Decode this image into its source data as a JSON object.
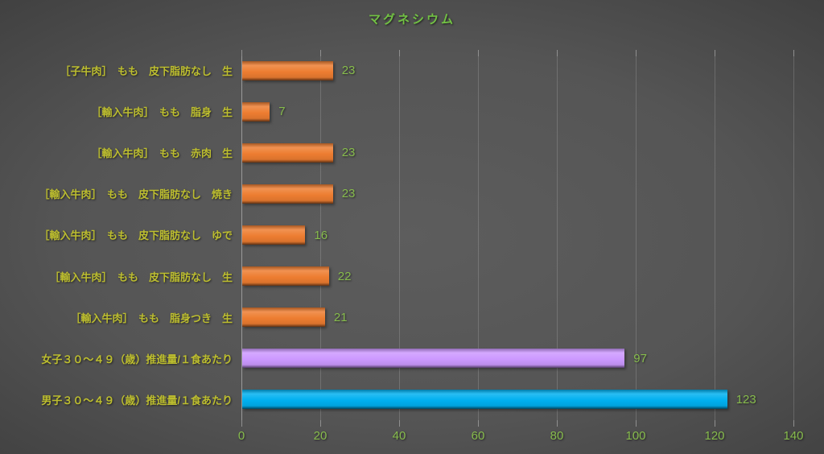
{
  "title": "マグネシウム",
  "colors": {
    "title": "#72C144",
    "category_label": "#BDBE2F",
    "value_label": "#87BC4D",
    "axis_tick_label": "#87BC4D",
    "axis_line": "#9a9a9a",
    "gridline": "rgba(255,255,255,0.16)",
    "tick_mark": "#8f8f8f",
    "background_center": "#5d5d5d",
    "background_edge": "#242424"
  },
  "chart_data": {
    "type": "bar",
    "orientation": "horizontal",
    "title": "マグネシウム",
    "categories": [
      "［子牛肉］　もも　皮下脂肪なし　生",
      "［輸入牛肉］　もも　脂身　生",
      "［輸入牛肉］　もも　赤肉　生",
      "［輸入牛肉］　もも　皮下脂肪なし　焼き",
      "［輸入牛肉］　もも　皮下脂肪なし　ゆで",
      "［輸入牛肉］　もも　皮下脂肪なし　生",
      "［輸入牛肉］　もも　脂身つき　生",
      "女子３０～４９（歳）推進量/１食あたり",
      "男子３０～４９（歳）推進量/１食あたり"
    ],
    "values": [
      23,
      7,
      23,
      23,
      16,
      22,
      21,
      97,
      123
    ],
    "bar_colors": [
      "#ED7D31",
      "#ED7D31",
      "#ED7D31",
      "#ED7D31",
      "#ED7D31",
      "#ED7D31",
      "#ED7D31",
      "#CC99FF",
      "#00B0F0"
    ],
    "value_labels": [
      "23",
      "7",
      "23",
      "23",
      "16",
      "22",
      "21",
      "97",
      "123"
    ],
    "xlabel": "",
    "ylabel": "",
    "xlim": [
      0,
      140
    ],
    "x_ticks": [
      0,
      20,
      40,
      60,
      80,
      100,
      120,
      140
    ],
    "grid": true,
    "legend": false,
    "value_labels_shown": true
  }
}
